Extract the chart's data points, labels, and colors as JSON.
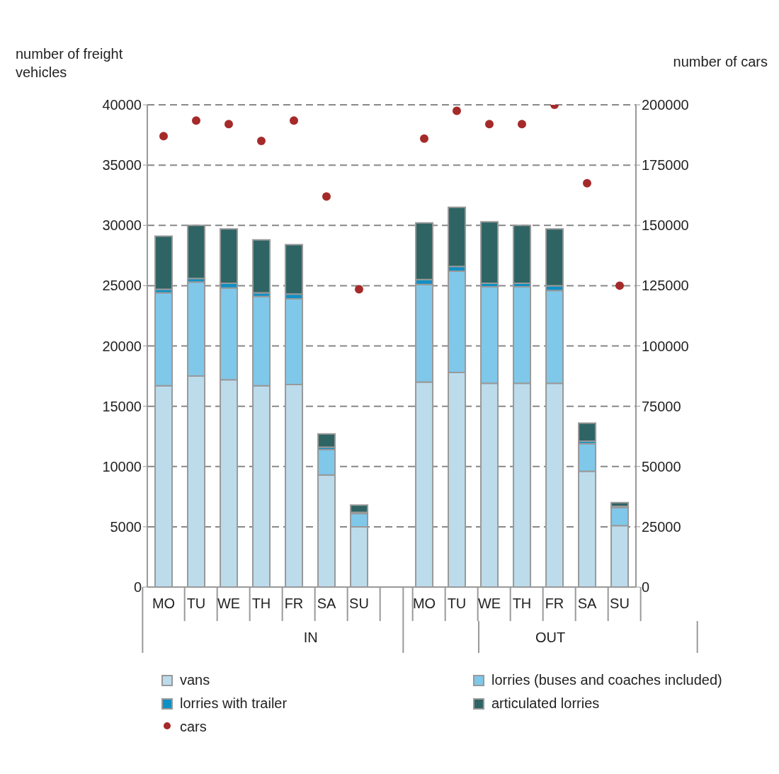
{
  "chart_data": {
    "type": "bar",
    "stacked": true,
    "ylabel": "number of freight vehicles",
    "y2label": "number of cars",
    "categories": [
      "MO",
      "TU",
      "WE",
      "TH",
      "FR",
      "SA",
      "SU",
      null,
      "MO",
      "TU",
      "WE",
      "TH",
      "FR",
      "SA",
      "SU"
    ],
    "annotations": [
      "IN",
      "OUT"
    ],
    "series": [
      {
        "name": "vans",
        "color": "#bcdcec",
        "values": [
          16700,
          17500,
          17200,
          16700,
          16800,
          9300,
          5000,
          null,
          17000,
          17800,
          16900,
          16900,
          16900,
          9600,
          5100
        ]
      },
      {
        "name": "lorries (buses and coaches included)",
        "color": "#7fc8ea",
        "values": [
          7700,
          7800,
          7600,
          7400,
          7100,
          2100,
          1100,
          null,
          8100,
          8400,
          8000,
          8000,
          7700,
          2300,
          1500
        ]
      },
      {
        "name": "lorries with trailer",
        "color": "#0f90c4",
        "values": [
          300,
          300,
          400,
          300,
          400,
          200,
          100,
          null,
          400,
          400,
          300,
          300,
          400,
          200,
          100
        ]
      },
      {
        "name": "articulated lorries",
        "color": "#2e6464",
        "values": [
          4400,
          4400,
          4500,
          4400,
          4100,
          1100,
          600,
          null,
          4700,
          4900,
          5100,
          4800,
          4700,
          1500,
          300
        ]
      },
      {
        "name": "cars",
        "type": "scatter",
        "axis": "y2",
        "marker": "circle",
        "color": "#a52a2a",
        "values": [
          187000,
          193500,
          192000,
          185000,
          193500,
          162000,
          123500,
          null,
          186000,
          197500,
          192000,
          192000,
          200000,
          167500,
          125000
        ]
      }
    ],
    "ylim": [
      0,
      40000
    ],
    "yticks": [
      0,
      5000,
      10000,
      15000,
      20000,
      25000,
      30000,
      35000,
      40000
    ],
    "y2lim": [
      0,
      200000
    ],
    "y2ticks": [
      0,
      25000,
      50000,
      75000,
      100000,
      125000,
      150000,
      175000,
      200000
    ],
    "grid": "y",
    "legend": "bottom"
  }
}
